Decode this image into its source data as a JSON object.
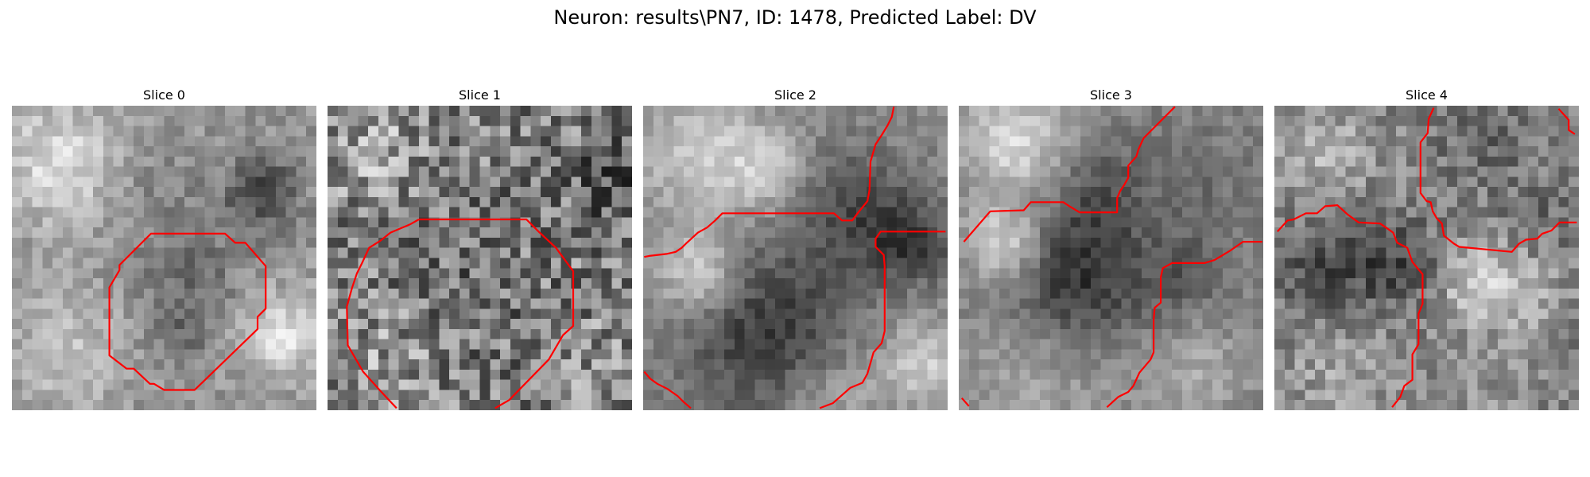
{
  "figure": {
    "title": "Neuron: results\\PN7, ID: 1478, Predicted Label: DV",
    "contour_color": "#ff0000"
  },
  "panels": [
    {
      "title": "Slice 0"
    },
    {
      "title": "Slice 1"
    },
    {
      "title": "Slice 2"
    },
    {
      "title": "Slice 3"
    },
    {
      "title": "Slice 4"
    }
  ]
}
